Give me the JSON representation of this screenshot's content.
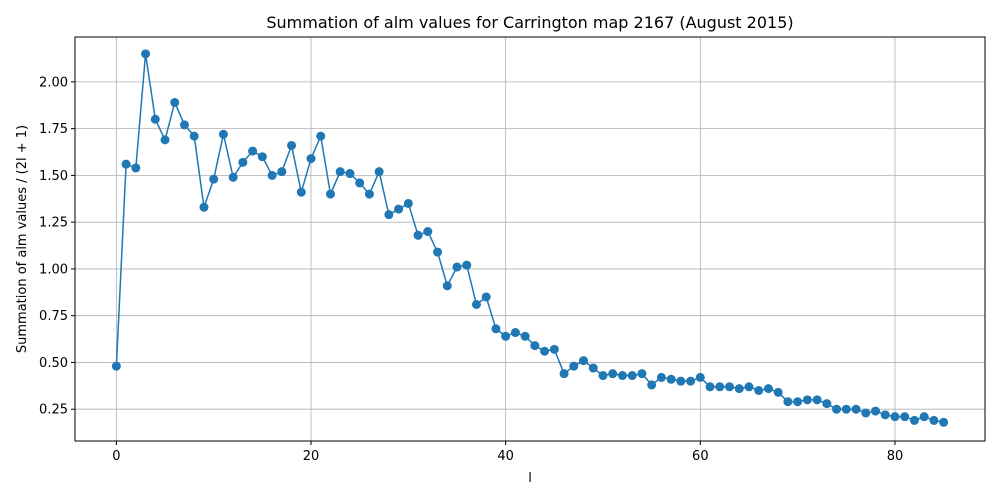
{
  "chart_data": {
    "type": "line",
    "title": "Summation of alm values for Carrington map 2167 (August 2015)",
    "xlabel": "l",
    "ylabel": "Summation of alm values / (2l + 1)",
    "xlim": [
      -4.25,
      89.25
    ],
    "ylim": [
      0.08,
      2.24
    ],
    "xticks": [
      0,
      20,
      40,
      60,
      80
    ],
    "yticks": [
      0.25,
      0.5,
      0.75,
      1.0,
      1.25,
      1.5,
      1.75,
      2.0
    ],
    "xtick_labels": [
      "0",
      "20",
      "40",
      "60",
      "80"
    ],
    "ytick_labels": [
      "0.25",
      "0.50",
      "0.75",
      "1.00",
      "1.25",
      "1.50",
      "1.75",
      "2.00"
    ],
    "grid": true,
    "marker": "circle",
    "color": "#1f77b4",
    "series": [
      {
        "x": [
          0,
          1,
          2,
          3,
          4,
          5,
          6,
          7,
          8,
          9,
          10,
          11,
          12,
          13,
          14,
          15,
          16,
          17,
          18,
          19,
          20,
          21,
          22,
          23,
          24,
          25,
          26,
          27,
          28,
          29,
          30,
          31,
          32,
          33,
          34,
          35,
          36,
          37,
          38,
          39,
          40,
          41,
          42,
          43,
          44,
          45,
          46,
          47,
          48,
          49,
          50,
          51,
          52,
          53,
          54,
          55,
          56,
          57,
          58,
          59,
          60,
          61,
          62,
          63,
          64,
          65,
          66,
          67,
          68,
          69,
          70,
          71,
          72,
          73,
          74,
          75,
          76,
          77,
          78,
          79,
          80,
          81,
          82,
          83,
          84,
          85
        ],
        "values": [
          0.48,
          1.56,
          1.54,
          2.15,
          1.8,
          1.69,
          1.89,
          1.77,
          1.71,
          1.33,
          1.48,
          1.72,
          1.49,
          1.57,
          1.63,
          1.6,
          1.5,
          1.52,
          1.66,
          1.41,
          1.59,
          1.71,
          1.4,
          1.52,
          1.51,
          1.46,
          1.4,
          1.52,
          1.29,
          1.32,
          1.35,
          1.18,
          1.2,
          1.09,
          0.91,
          1.01,
          1.02,
          0.81,
          0.85,
          0.68,
          0.64,
          0.66,
          0.64,
          0.59,
          0.56,
          0.57,
          0.44,
          0.48,
          0.51,
          0.47,
          0.43,
          0.44,
          0.43,
          0.43,
          0.44,
          0.38,
          0.42,
          0.41,
          0.4,
          0.4,
          0.42,
          0.37,
          0.37,
          0.37,
          0.36,
          0.37,
          0.35,
          0.36,
          0.34,
          0.29,
          0.29,
          0.3,
          0.3,
          0.28,
          0.25,
          0.25,
          0.25,
          0.23,
          0.24,
          0.22,
          0.21,
          0.21,
          0.19,
          0.21,
          0.19,
          0.18
        ]
      }
    ]
  }
}
